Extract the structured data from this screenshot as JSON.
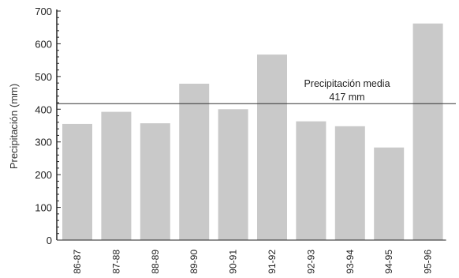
{
  "chart_data": {
    "type": "bar",
    "categories": [
      "86-87",
      "87-88",
      "88-89",
      "89-90",
      "90-91",
      "91-92",
      "92-93",
      "93-94",
      "94-95",
      "95-96"
    ],
    "values": [
      355,
      392,
      357,
      478,
      400,
      567,
      363,
      348,
      283,
      662
    ],
    "ylabel": "Precipitación (mm)",
    "xlabel": "",
    "ylim": [
      0,
      700
    ],
    "yticks": [
      0,
      100,
      200,
      300,
      400,
      500,
      600,
      700
    ],
    "reference_line": {
      "value": 417,
      "label_line1": "Precipitación media",
      "label_line2": "417  mm"
    },
    "colors": {
      "bar": "#c9c9c9",
      "axis": "#222222",
      "reference_line": "#333333"
    },
    "grid": false
  }
}
